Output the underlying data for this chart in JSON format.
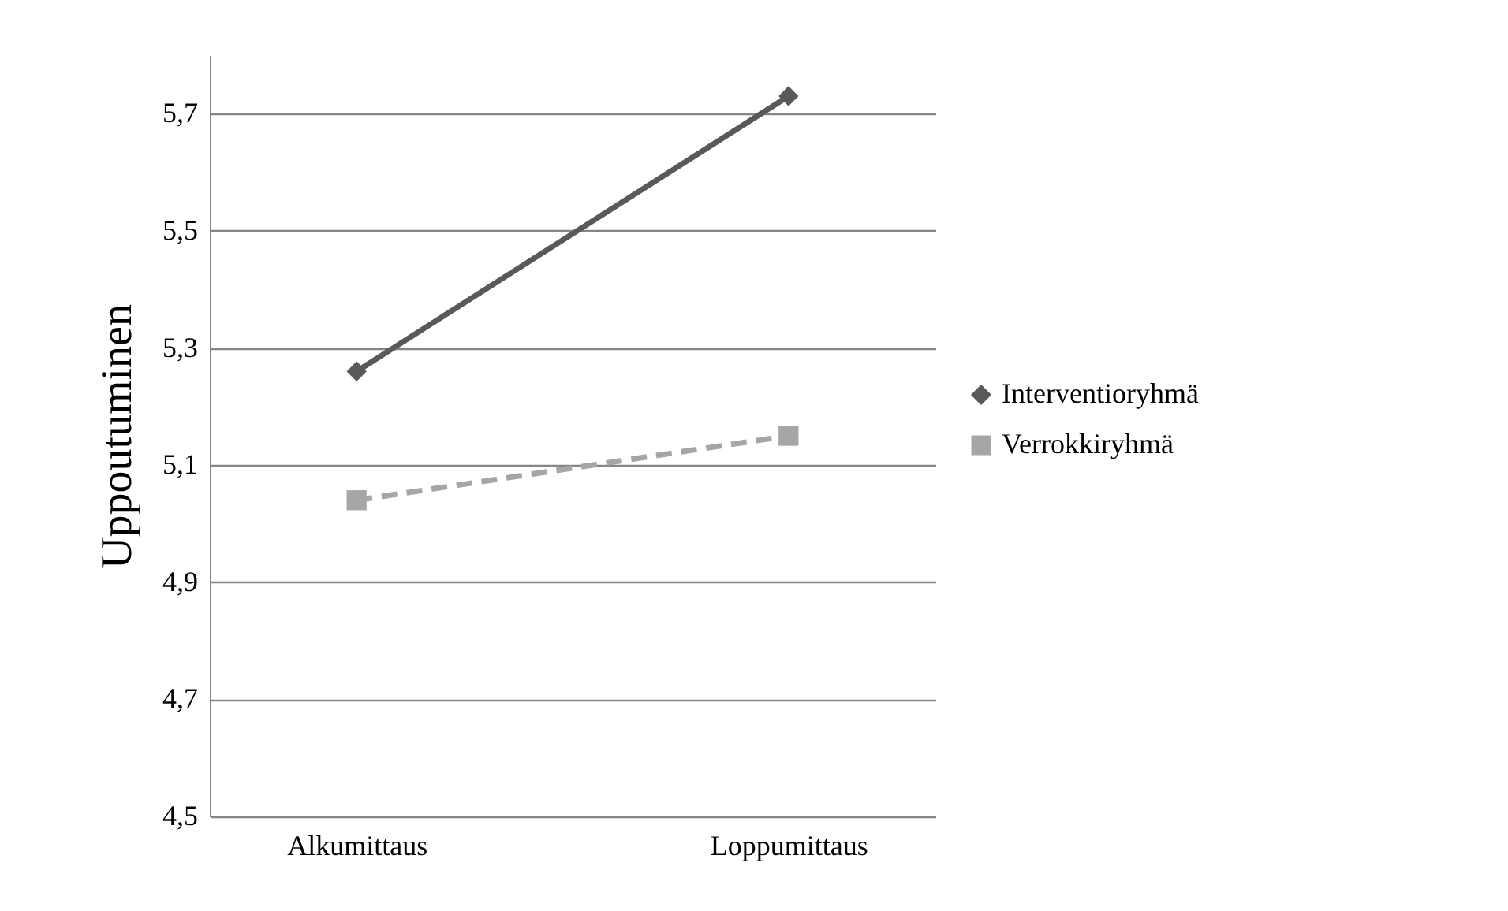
{
  "chart_data": {
    "type": "line",
    "ylabel": "Uppoutuminen",
    "categories": [
      "Alkumittaus",
      "Loppumittaus"
    ],
    "series": [
      {
        "name": "Interventioryhmä",
        "color": "#595959",
        "values": [
          5.26,
          5.73
        ],
        "marker": "diamond",
        "line_style": "solid"
      },
      {
        "name": "Verrokkiryhmä",
        "color": "#a6a6a6",
        "values": [
          5.04,
          5.15
        ],
        "marker": "square",
        "line_style": "dashed"
      }
    ],
    "ylim": [
      4.5,
      5.8
    ],
    "yticks": [
      {
        "value": 4.5,
        "label": "4,5"
      },
      {
        "value": 4.7,
        "label": "4,7"
      },
      {
        "value": 4.9,
        "label": "4,9"
      },
      {
        "value": 5.1,
        "label": "5,1"
      },
      {
        "value": 5.3,
        "label": "5,3"
      },
      {
        "value": 5.5,
        "label": "5,5"
      },
      {
        "value": 5.7,
        "label": "5,7"
      }
    ],
    "grid": "y",
    "legend": "right"
  }
}
